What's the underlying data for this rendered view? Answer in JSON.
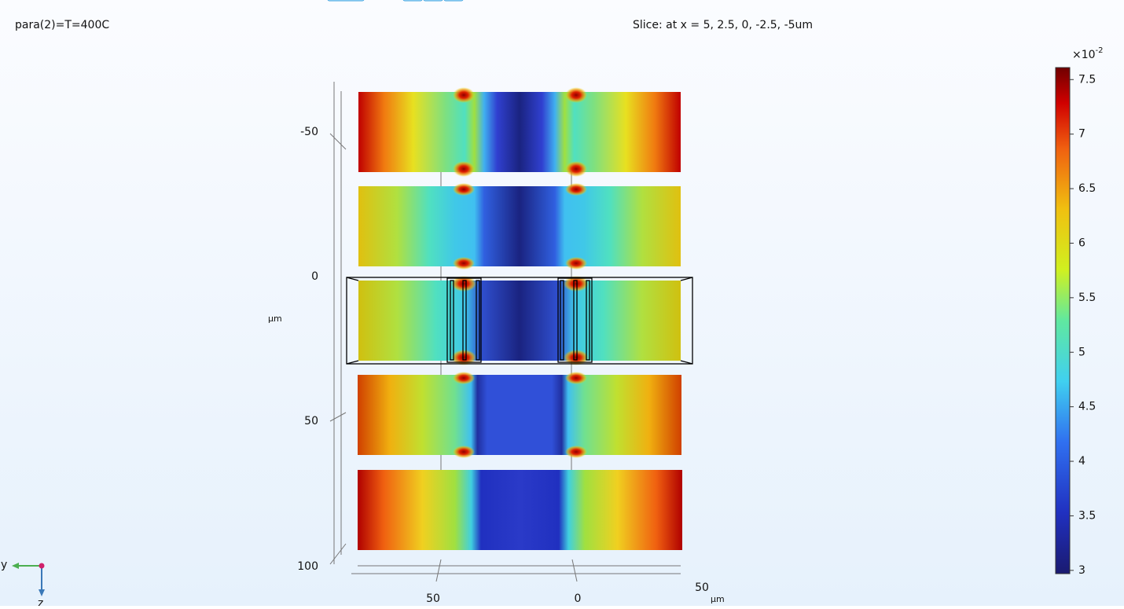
{
  "header": {
    "left": "para(2)=T=400C",
    "right": "Slice: at x = 5, 2.5, 0, -2.5, -5um"
  },
  "axes": {
    "z_ticks": [
      "-50",
      "0",
      "50",
      "100"
    ],
    "z_unit": "µm",
    "y_ticks": [
      "50",
      "0",
      "50"
    ],
    "y_unit": "µm"
  },
  "triad": {
    "y": "y",
    "z": "z"
  },
  "colorbar": {
    "multiplier": "×10",
    "exponent": "-2",
    "lim": [
      2.97,
      7.61
    ],
    "ticks": [
      3,
      3.5,
      4,
      4.5,
      5,
      5.5,
      6,
      6.5,
      7,
      7.5
    ]
  }
}
